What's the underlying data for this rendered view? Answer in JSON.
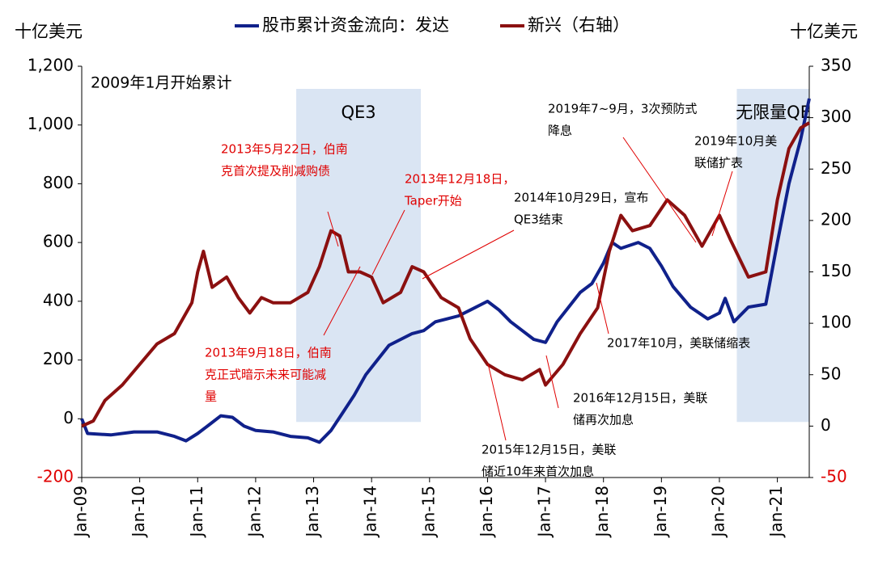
{
  "chart_data": {
    "type": "line",
    "ylabel": "十亿美元",
    "y2label": "十亿美元",
    "subtitle": "2009年1月开始累计",
    "xlim": [
      2009,
      2021.55
    ],
    "xticks": [
      {
        "value": 2009,
        "label": "Jan-09"
      },
      {
        "value": 2010,
        "label": "Jan-10"
      },
      {
        "value": 2011,
        "label": "Jan-11"
      },
      {
        "value": 2012,
        "label": "Jan-12"
      },
      {
        "value": 2013,
        "label": "Jan-13"
      },
      {
        "value": 2014,
        "label": "Jan-14"
      },
      {
        "value": 2015,
        "label": "Jan-15"
      },
      {
        "value": 2016,
        "label": "Jan-16"
      },
      {
        "value": 2017,
        "label": "Jan-17"
      },
      {
        "value": 2018,
        "label": "Jan-18"
      },
      {
        "value": 2019,
        "label": "Jan-19"
      },
      {
        "value": 2020,
        "label": "Jan-20"
      },
      {
        "value": 2021,
        "label": "Jan-21"
      }
    ],
    "ylim": [
      -200,
      1200
    ],
    "yticks": [
      {
        "value": 1200,
        "label": "1,200"
      },
      {
        "value": 1000,
        "label": "1,000"
      },
      800,
      600,
      400,
      200,
      0,
      -200
    ],
    "y2lim": [
      -50,
      350
    ],
    "y2ticks": [
      350,
      300,
      250,
      200,
      150,
      100,
      50,
      0,
      -50
    ],
    "negative_tick_color": "#e00000",
    "grid": false,
    "legend": "top",
    "series": [
      {
        "name": "股市累计资金流向：发达",
        "color": "#10218b",
        "x": [
          2009.0,
          2009.1,
          2009.5,
          2009.9,
          2010.3,
          2010.6,
          2010.8,
          2011.0,
          2011.2,
          2011.4,
          2011.6,
          2011.8,
          2012.0,
          2012.3,
          2012.6,
          2012.9,
          2013.1,
          2013.3,
          2013.5,
          2013.7,
          2013.9,
          2014.1,
          2014.3,
          2014.5,
          2014.7,
          2014.9,
          2015.1,
          2015.3,
          2015.5,
          2015.7,
          2015.9,
          2016.0,
          2016.2,
          2016.4,
          2016.6,
          2016.8,
          2017.0,
          2017.2,
          2017.4,
          2017.6,
          2017.8,
          2018.0,
          2018.15,
          2018.3,
          2018.6,
          2018.8,
          2019.0,
          2019.2,
          2019.5,
          2019.8,
          2020.0,
          2020.1,
          2020.25,
          2020.5,
          2020.8,
          2021.0,
          2021.2,
          2021.4,
          2021.55
        ],
        "values": [
          0,
          -50,
          -55,
          -45,
          -45,
          -60,
          -75,
          -50,
          -20,
          10,
          5,
          -25,
          -40,
          -45,
          -60,
          -65,
          -80,
          -40,
          20,
          80,
          150,
          200,
          250,
          270,
          290,
          300,
          330,
          340,
          350,
          370,
          390,
          400,
          370,
          330,
          300,
          270,
          260,
          330,
          380,
          430,
          460,
          530,
          600,
          580,
          600,
          580,
          520,
          450,
          380,
          340,
          360,
          410,
          330,
          380,
          390,
          600,
          800,
          950,
          1090
        ]
      },
      {
        "name": "新兴（右轴）",
        "color": "#8b1010",
        "axis": "y2",
        "x": [
          2009.0,
          2009.2,
          2009.4,
          2009.7,
          2010.0,
          2010.3,
          2010.6,
          2010.9,
          2011.0,
          2011.1,
          2011.25,
          2011.5,
          2011.7,
          2011.9,
          2012.1,
          2012.3,
          2012.6,
          2012.9,
          2013.1,
          2013.3,
          2013.45,
          2013.6,
          2013.8,
          2014.0,
          2014.2,
          2014.5,
          2014.7,
          2014.9,
          2015.2,
          2015.5,
          2015.7,
          2016.0,
          2016.3,
          2016.6,
          2016.9,
          2017.0,
          2017.3,
          2017.6,
          2017.9,
          2018.1,
          2018.3,
          2018.5,
          2018.8,
          2019.1,
          2019.4,
          2019.7,
          2019.9,
          2020.0,
          2020.2,
          2020.5,
          2020.8,
          2021.0,
          2021.2,
          2021.4,
          2021.55
        ],
        "values": [
          0,
          5,
          25,
          40,
          60,
          80,
          90,
          120,
          150,
          170,
          135,
          145,
          125,
          110,
          125,
          120,
          120,
          130,
          155,
          190,
          185,
          150,
          150,
          145,
          120,
          130,
          155,
          150,
          125,
          115,
          85,
          60,
          50,
          45,
          55,
          40,
          60,
          90,
          115,
          170,
          205,
          190,
          195,
          220,
          205,
          175,
          195,
          205,
          180,
          145,
          150,
          220,
          270,
          290,
          295
        ]
      }
    ],
    "shaded": [
      {
        "label": "QE3",
        "start": 2012.7,
        "end": 2014.85
      },
      {
        "label": "无限量QE",
        "start": 2020.3,
        "end": 2021.55
      }
    ],
    "annotations": [
      {
        "lines": [
          "2013年5月22日，伯南",
          "克首次提及削减购债"
        ],
        "color": "#e00000"
      },
      {
        "lines": [
          "2013年12月18日，",
          "Taper开始"
        ],
        "color": "#e00000"
      },
      {
        "lines": [
          "2013年9月18日，伯南",
          "克正式暗示未来可能减",
          "量"
        ],
        "color": "#e00000"
      },
      {
        "lines": [
          "2014年10月29日，宣布",
          "QE3结束"
        ],
        "color": "#000000"
      },
      {
        "lines": [
          "2019年7~9月，3次预防式",
          "降息"
        ],
        "color": "#000000"
      },
      {
        "lines": [
          "2019年10月美",
          "联储扩表"
        ],
        "color": "#000000"
      },
      {
        "lines": [
          "2017年10月，美联储缩表"
        ],
        "color": "#000000"
      },
      {
        "lines": [
          "2016年12月15日，美联",
          "储再次加息"
        ],
        "color": "#000000"
      },
      {
        "lines": [
          "2015年12月15日，美联",
          "储近10年来首次加息"
        ],
        "color": "#000000"
      }
    ]
  }
}
